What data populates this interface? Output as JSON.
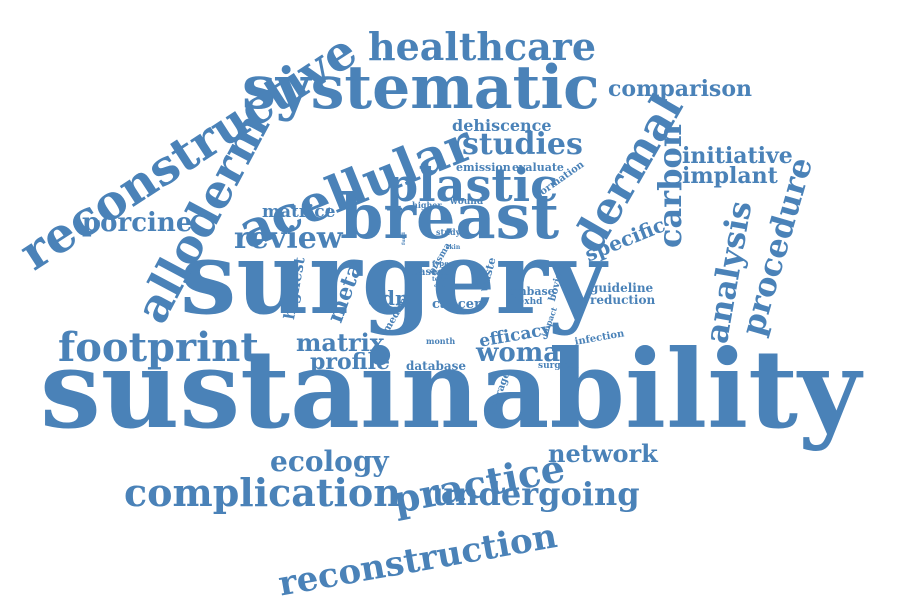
{
  "color": "#4a82b8",
  "words": [
    {
      "id": "sustainability",
      "text": "sustainability"
    },
    {
      "id": "surgery",
      "text": "surgery"
    },
    {
      "id": "breast",
      "text": "breast"
    },
    {
      "id": "systematic",
      "text": "systematic"
    },
    {
      "id": "reconstructive",
      "text": "reconstructive"
    },
    {
      "id": "acellular",
      "text": "acellular"
    },
    {
      "id": "alloderm",
      "text": "alloderm"
    },
    {
      "id": "plastic",
      "text": "plastic"
    },
    {
      "id": "dermal",
      "text": "dermal"
    },
    {
      "id": "healthcare",
      "text": "healthcare"
    },
    {
      "id": "footprint",
      "text": "footprint"
    },
    {
      "id": "complication",
      "text": "complication"
    },
    {
      "id": "practice",
      "text": "practice"
    },
    {
      "id": "undergoing",
      "text": "undergoing"
    },
    {
      "id": "reconstruction",
      "text": "reconstruction"
    },
    {
      "id": "carbon",
      "text": "carbon"
    },
    {
      "id": "analysis",
      "text": "analysis"
    },
    {
      "id": "procedure",
      "text": "procedure"
    },
    {
      "id": "studies",
      "text": "studies"
    },
    {
      "id": "review",
      "text": "review"
    },
    {
      "id": "porcine",
      "text": "porcine"
    },
    {
      "id": "comparison",
      "text": "comparison"
    },
    {
      "id": "initiative",
      "text": "initiative"
    },
    {
      "id": "implant",
      "text": "implant"
    },
    {
      "id": "woman",
      "text": "woman"
    },
    {
      "id": "network",
      "text": "network"
    },
    {
      "id": "ecology",
      "text": "ecology"
    },
    {
      "id": "matrix",
      "text": "matrix"
    },
    {
      "id": "profile",
      "text": "profile"
    },
    {
      "id": "meta",
      "text": "meta"
    },
    {
      "id": "adm",
      "text": "adm"
    },
    {
      "id": "specific",
      "text": "specific"
    },
    {
      "id": "highest",
      "text": "highest"
    },
    {
      "id": "dehiscence",
      "text": "dehiscence"
    },
    {
      "id": "matrice",
      "text": "matrice"
    },
    {
      "id": "efficacy",
      "text": "efficacy"
    },
    {
      "id": "cancer",
      "text": "cancer"
    },
    {
      "id": "database",
      "text": "database"
    },
    {
      "id": "guideline",
      "text": "guideline"
    },
    {
      "id": "reduction",
      "text": "reduction"
    },
    {
      "id": "embase",
      "text": "embase"
    },
    {
      "id": "emission",
      "text": "emission"
    },
    {
      "id": "evaluate",
      "text": "evaluate"
    },
    {
      "id": "formation",
      "text": "formation"
    },
    {
      "id": "higher",
      "text": "higher"
    },
    {
      "id": "wound",
      "text": "wound"
    },
    {
      "id": "study",
      "text": "study"
    },
    {
      "id": "based",
      "text": "based"
    },
    {
      "id": "prisma",
      "text": "prisma"
    },
    {
      "id": "medline",
      "text": "medline"
    },
    {
      "id": "waste",
      "text": "waste"
    },
    {
      "id": "bovine",
      "text": "bovine"
    },
    {
      "id": "flexhd",
      "text": "flexhd"
    },
    {
      "id": "impact",
      "text": "impact"
    },
    {
      "id": "infection",
      "text": "infection"
    },
    {
      "id": "month",
      "text": "month"
    },
    {
      "id": "average",
      "text": "average"
    },
    {
      "id": "surgical",
      "text": "surgical"
    },
    {
      "id": "type",
      "text": "type"
    },
    {
      "id": "rate",
      "text": "rate"
    },
    {
      "id": "term",
      "text": "term"
    },
    {
      "id": "cost",
      "text": "cost"
    },
    {
      "id": "most",
      "text": "most"
    },
    {
      "id": "skin",
      "text": "skin"
    },
    {
      "id": "fund",
      "text": "fund"
    }
  ]
}
